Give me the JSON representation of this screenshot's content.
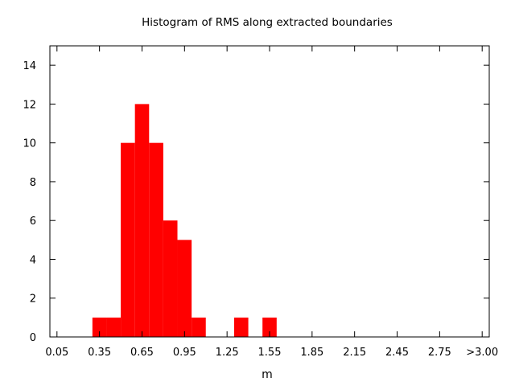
{
  "chart_data": {
    "type": "bar",
    "title": "Histogram of RMS along extracted boundaries",
    "xlabel": "m",
    "ylabel": "",
    "bin_width": 0.1,
    "bins": [
      {
        "x0": 0.3,
        "x1": 0.4,
        "count": 1
      },
      {
        "x0": 0.4,
        "x1": 0.5,
        "count": 1
      },
      {
        "x0": 0.5,
        "x1": 0.6,
        "count": 10
      },
      {
        "x0": 0.6,
        "x1": 0.7,
        "count": 12
      },
      {
        "x0": 0.7,
        "x1": 0.8,
        "count": 10
      },
      {
        "x0": 0.8,
        "x1": 0.9,
        "count": 6
      },
      {
        "x0": 0.9,
        "x1": 1.0,
        "count": 5
      },
      {
        "x0": 1.0,
        "x1": 1.1,
        "count": 1
      },
      {
        "x0": 1.3,
        "x1": 1.4,
        "count": 1
      },
      {
        "x0": 1.5,
        "x1": 1.6,
        "count": 1
      }
    ],
    "xlim": [
      0.0,
      3.1
    ],
    "ylim": [
      0,
      15
    ],
    "x_ticks": [
      {
        "value": 0.05,
        "label": "0.05"
      },
      {
        "value": 0.35,
        "label": "0.35"
      },
      {
        "value": 0.65,
        "label": "0.65"
      },
      {
        "value": 0.95,
        "label": "0.95"
      },
      {
        "value": 1.25,
        "label": "1.25"
      },
      {
        "value": 1.55,
        "label": "1.55"
      },
      {
        "value": 1.85,
        "label": "1.85"
      },
      {
        "value": 2.15,
        "label": "2.15"
      },
      {
        "value": 2.45,
        "label": "2.45"
      },
      {
        "value": 2.75,
        "label": "2.75"
      },
      {
        "value": 3.05,
        "label": ">3.00"
      }
    ],
    "y_ticks": [
      {
        "value": 0,
        "label": "0"
      },
      {
        "value": 2,
        "label": "2"
      },
      {
        "value": 4,
        "label": "4"
      },
      {
        "value": 6,
        "label": "6"
      },
      {
        "value": 8,
        "label": "8"
      },
      {
        "value": 10,
        "label": "10"
      },
      {
        "value": 12,
        "label": "12"
      },
      {
        "value": 14,
        "label": "14"
      }
    ],
    "grid": false,
    "legend": "none",
    "bar_color": "#ff0000"
  }
}
